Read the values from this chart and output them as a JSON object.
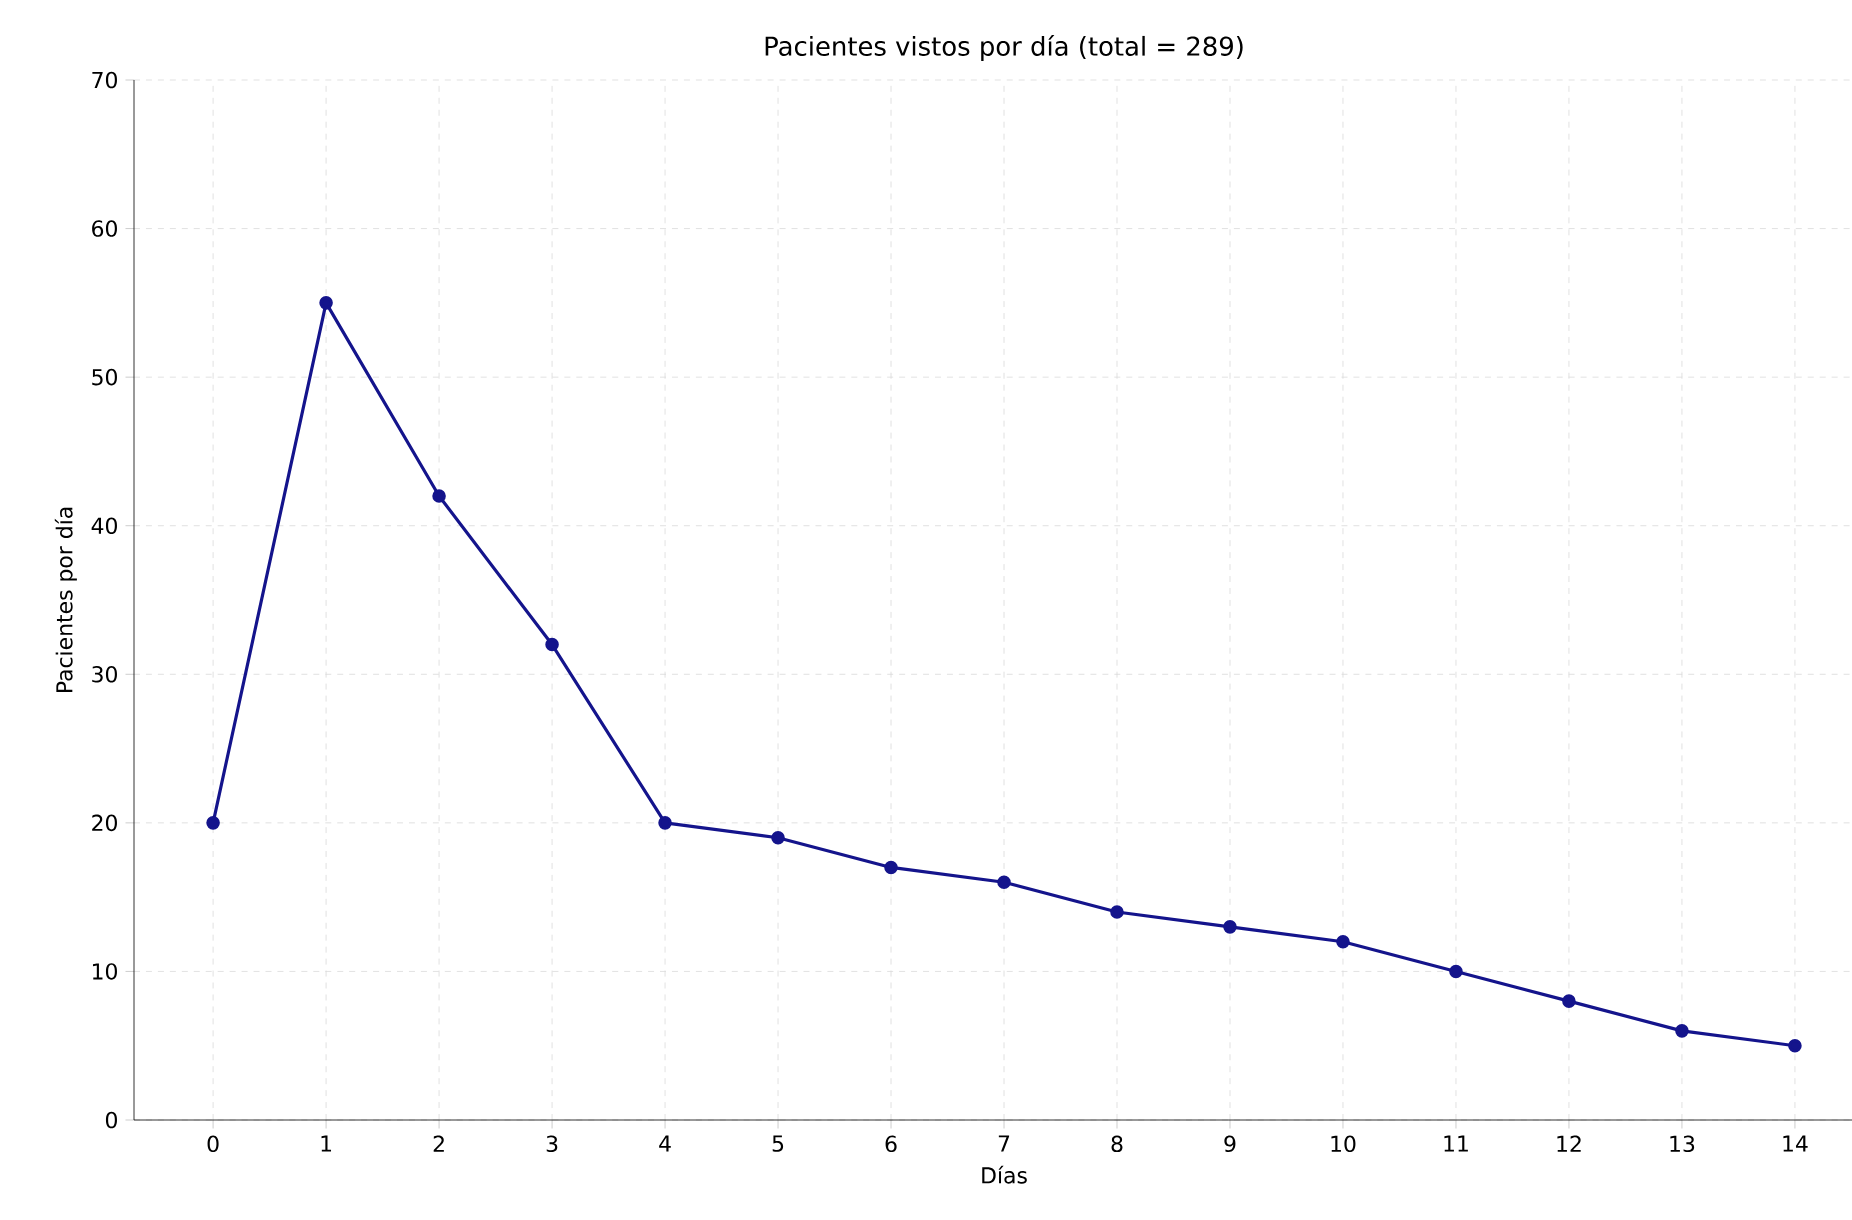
{
  "chart_data": {
    "type": "line",
    "title": "Pacientes vistos por día (total = 289)",
    "xlabel": "Días",
    "ylabel": "Pacientes por día",
    "x": [
      0,
      1,
      2,
      3,
      4,
      5,
      6,
      7,
      8,
      9,
      10,
      11,
      12,
      13,
      14
    ],
    "series": [
      {
        "color": "#14148c",
        "values": [
          20,
          55,
          42,
          32,
          20,
          19,
          17,
          16,
          14,
          13,
          12,
          10,
          8,
          6,
          5
        ]
      }
    ],
    "xlim": [
      -0.7,
      14.7
    ],
    "ylim": [
      0,
      70
    ],
    "xticks": [
      0,
      1,
      2,
      3,
      4,
      5,
      6,
      7,
      8,
      9,
      10,
      11,
      12,
      13,
      14
    ],
    "yticks": [
      0,
      10,
      20,
      30,
      40,
      50,
      60,
      70
    ],
    "grid": true,
    "marker": "circle",
    "line_style": "solid"
  }
}
